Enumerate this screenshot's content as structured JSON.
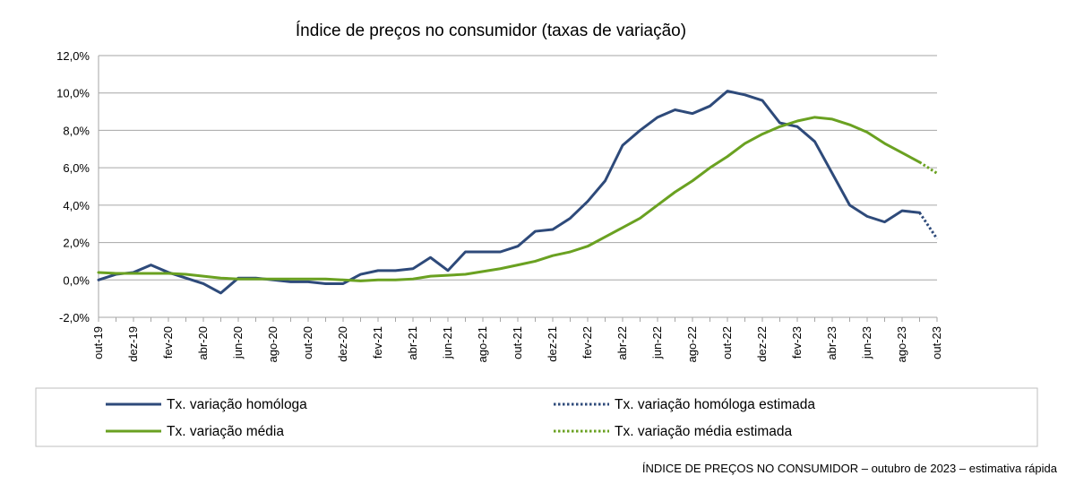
{
  "chart_data": {
    "type": "line",
    "title": "Índice de preços no consumidor  (taxas  de variação)",
    "y_tick_labels": [
      "12,0%",
      "10,0%",
      "8,0%",
      "6,0%",
      "4,0%",
      "2,0%",
      "0,0%",
      "-2,0%"
    ],
    "y_ticks": [
      12,
      10,
      8,
      6,
      4,
      2,
      0,
      -2
    ],
    "ylim": [
      -2,
      12
    ],
    "grid": true,
    "x_tick_labels": [
      "out-19",
      "dez-19",
      "fev-20",
      "abr-20",
      "jun-20",
      "ago-20",
      "out-20",
      "dez-20",
      "fev-21",
      "abr-21",
      "jun-21",
      "ago-21",
      "out-21",
      "dez-21",
      "fev-22",
      "abr-22",
      "jun-22",
      "ago-22",
      "out-22",
      "dez-22",
      "fev-23",
      "abr-23",
      "jun-23",
      "ago-23",
      "out-23"
    ],
    "x": [
      "out-19",
      "nov-19",
      "dez-19",
      "jan-20",
      "fev-20",
      "mar-20",
      "abr-20",
      "mai-20",
      "jun-20",
      "jul-20",
      "ago-20",
      "set-20",
      "out-20",
      "nov-20",
      "dez-20",
      "jan-21",
      "fev-21",
      "mar-21",
      "abr-21",
      "mai-21",
      "jun-21",
      "jul-21",
      "ago-21",
      "set-21",
      "out-21",
      "nov-21",
      "dez-21",
      "jan-22",
      "fev-22",
      "mar-22",
      "abr-22",
      "mai-22",
      "jun-22",
      "jul-22",
      "ago-22",
      "set-22",
      "out-22",
      "nov-22",
      "dez-22",
      "jan-23",
      "fev-23",
      "mar-23",
      "abr-23",
      "mai-23",
      "jun-23",
      "jul-23",
      "ago-23",
      "set-23",
      "out-23"
    ],
    "legend_position": "bottom",
    "series": [
      {
        "name": "Tx. variação homóloga",
        "color": "#2e4a7a",
        "style": "solid",
        "values": [
          0.0,
          0.3,
          0.4,
          0.8,
          0.4,
          0.1,
          -0.2,
          -0.7,
          0.1,
          0.1,
          0.0,
          -0.1,
          -0.1,
          -0.2,
          -0.2,
          0.3,
          0.5,
          0.5,
          0.6,
          1.2,
          0.5,
          1.5,
          1.5,
          1.5,
          1.8,
          2.6,
          2.7,
          3.3,
          4.2,
          5.3,
          7.2,
          8.0,
          8.7,
          9.1,
          8.9,
          9.3,
          10.1,
          9.9,
          9.6,
          8.4,
          8.2,
          7.4,
          5.7,
          4.0,
          3.4,
          3.1,
          3.7,
          3.6,
          null
        ]
      },
      {
        "name": "Tx. variação homóloga estimada",
        "color": "#2e4a7a",
        "style": "dotted",
        "values": [
          null,
          null,
          null,
          null,
          null,
          null,
          null,
          null,
          null,
          null,
          null,
          null,
          null,
          null,
          null,
          null,
          null,
          null,
          null,
          null,
          null,
          null,
          null,
          null,
          null,
          null,
          null,
          null,
          null,
          null,
          null,
          null,
          null,
          null,
          null,
          null,
          null,
          null,
          null,
          null,
          null,
          null,
          null,
          null,
          null,
          null,
          null,
          3.6,
          2.2
        ]
      },
      {
        "name": "Tx. variação média",
        "color": "#6aa121",
        "style": "solid",
        "values": [
          0.4,
          0.35,
          0.35,
          0.35,
          0.35,
          0.3,
          0.2,
          0.1,
          0.05,
          0.05,
          0.05,
          0.05,
          0.05,
          0.05,
          0.0,
          -0.05,
          0.0,
          0.0,
          0.05,
          0.2,
          0.25,
          0.3,
          0.45,
          0.6,
          0.8,
          1.0,
          1.3,
          1.5,
          1.8,
          2.3,
          2.8,
          3.3,
          4.0,
          4.7,
          5.3,
          6.0,
          6.6,
          7.3,
          7.8,
          8.2,
          8.5,
          8.7,
          8.6,
          8.3,
          7.9,
          7.3,
          6.8,
          6.3,
          null
        ]
      },
      {
        "name": "Tx. variação média  estimada",
        "color": "#6aa121",
        "style": "dotted",
        "values": [
          null,
          null,
          null,
          null,
          null,
          null,
          null,
          null,
          null,
          null,
          null,
          null,
          null,
          null,
          null,
          null,
          null,
          null,
          null,
          null,
          null,
          null,
          null,
          null,
          null,
          null,
          null,
          null,
          null,
          null,
          null,
          null,
          null,
          null,
          null,
          null,
          null,
          null,
          null,
          null,
          null,
          null,
          null,
          null,
          null,
          null,
          null,
          6.3,
          5.7
        ]
      }
    ]
  },
  "footer": {
    "text": "ÍNDICE DE PREÇOS NO CONSUMIDOR – outubro de 2023 – estimativa rápida"
  }
}
